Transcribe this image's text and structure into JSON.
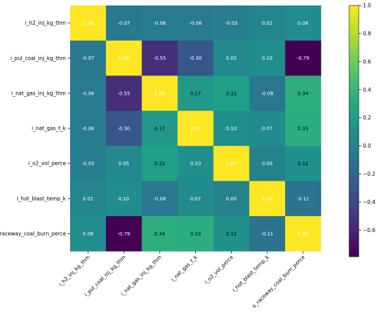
{
  "chart_data": {
    "type": "heatmap",
    "title": "",
    "labels": [
      "i_h2_inj_kg_thm",
      "i_pul_coal_inj_kg_thm",
      "i_nat_gas_inj_kg_thm",
      "i_nat_gas_t_k",
      "i_o2_vol_perce",
      "i_hot_blast_temp_k",
      "o_raceway_coal_burn_perce"
    ],
    "matrix": [
      [
        1.0,
        -0.07,
        -0.06,
        -0.06,
        -0.03,
        0.02,
        0.08
      ],
      [
        -0.07,
        1.0,
        -0.55,
        -0.3,
        0.05,
        0.1,
        -0.79
      ],
      [
        -0.06,
        -0.55,
        1.0,
        0.17,
        0.22,
        -0.08,
        0.34
      ],
      [
        -0.06,
        -0.3,
        0.17,
        1.0,
        0.1,
        0.07,
        0.33
      ],
      [
        -0.03,
        0.05,
        0.22,
        0.1,
        1.0,
        0.0,
        0.12
      ],
      [
        0.02,
        0.1,
        -0.08,
        0.07,
        0.0,
        1.0,
        -0.11
      ],
      [
        0.08,
        -0.79,
        0.34,
        0.33,
        0.12,
        -0.11,
        1.0
      ]
    ],
    "value_format": "0.00",
    "colormap": "viridis",
    "vmin": -0.79,
    "vmax": 1.0,
    "colorbar": {
      "ticks": [
        1.0,
        0.8,
        0.6,
        0.4,
        0.2,
        0.0,
        -0.2,
        -0.4,
        -0.6
      ],
      "tick_labels": [
        "1.0",
        "0.8",
        "0.6",
        "0.4",
        "0.2",
        "0.0",
        "−0.2",
        "−0.4",
        "−0.6"
      ]
    },
    "x_tick_rotation_deg": 45,
    "grid": false
  }
}
